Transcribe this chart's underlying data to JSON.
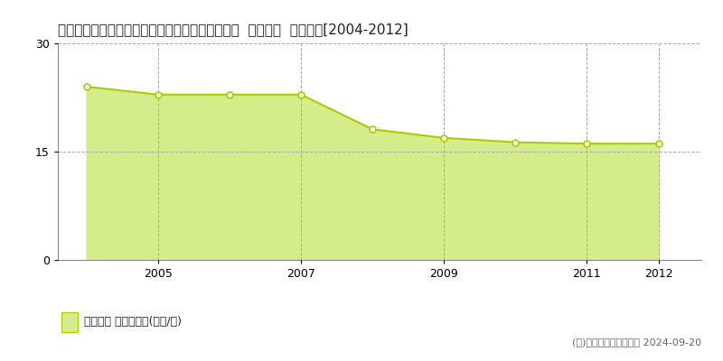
{
  "title": "愛知県知多郡南知多町大字片名字新師崎１０番５  公示地価  地価推移[2004-2012]",
  "years": [
    2004,
    2005,
    2006,
    2007,
    2008,
    2009,
    2010,
    2011,
    2012
  ],
  "values": [
    24.0,
    22.9,
    22.9,
    22.9,
    18.1,
    16.9,
    16.3,
    16.1,
    16.1
  ],
  "line_color": "#aacc00",
  "fill_color": "#d4ed8a",
  "marker_color": "#ffffff",
  "marker_edge_color": "#aacc00",
  "grid_color": "#aaaaaa",
  "background_color": "#ffffff",
  "legend_label": "公示地価 平均坪単価(万円/坪)",
  "copyright_text": "(Ｃ)土地価格ドットコム 2024-09-20",
  "ylim": [
    0,
    30
  ],
  "yticks": [
    0,
    15,
    30
  ],
  "xlim_left": 2003.6,
  "xlim_right": 2012.6,
  "xticks": [
    2005,
    2007,
    2009,
    2011,
    2012
  ],
  "title_fontsize": 11,
  "legend_fontsize": 9,
  "copyright_fontsize": 8
}
